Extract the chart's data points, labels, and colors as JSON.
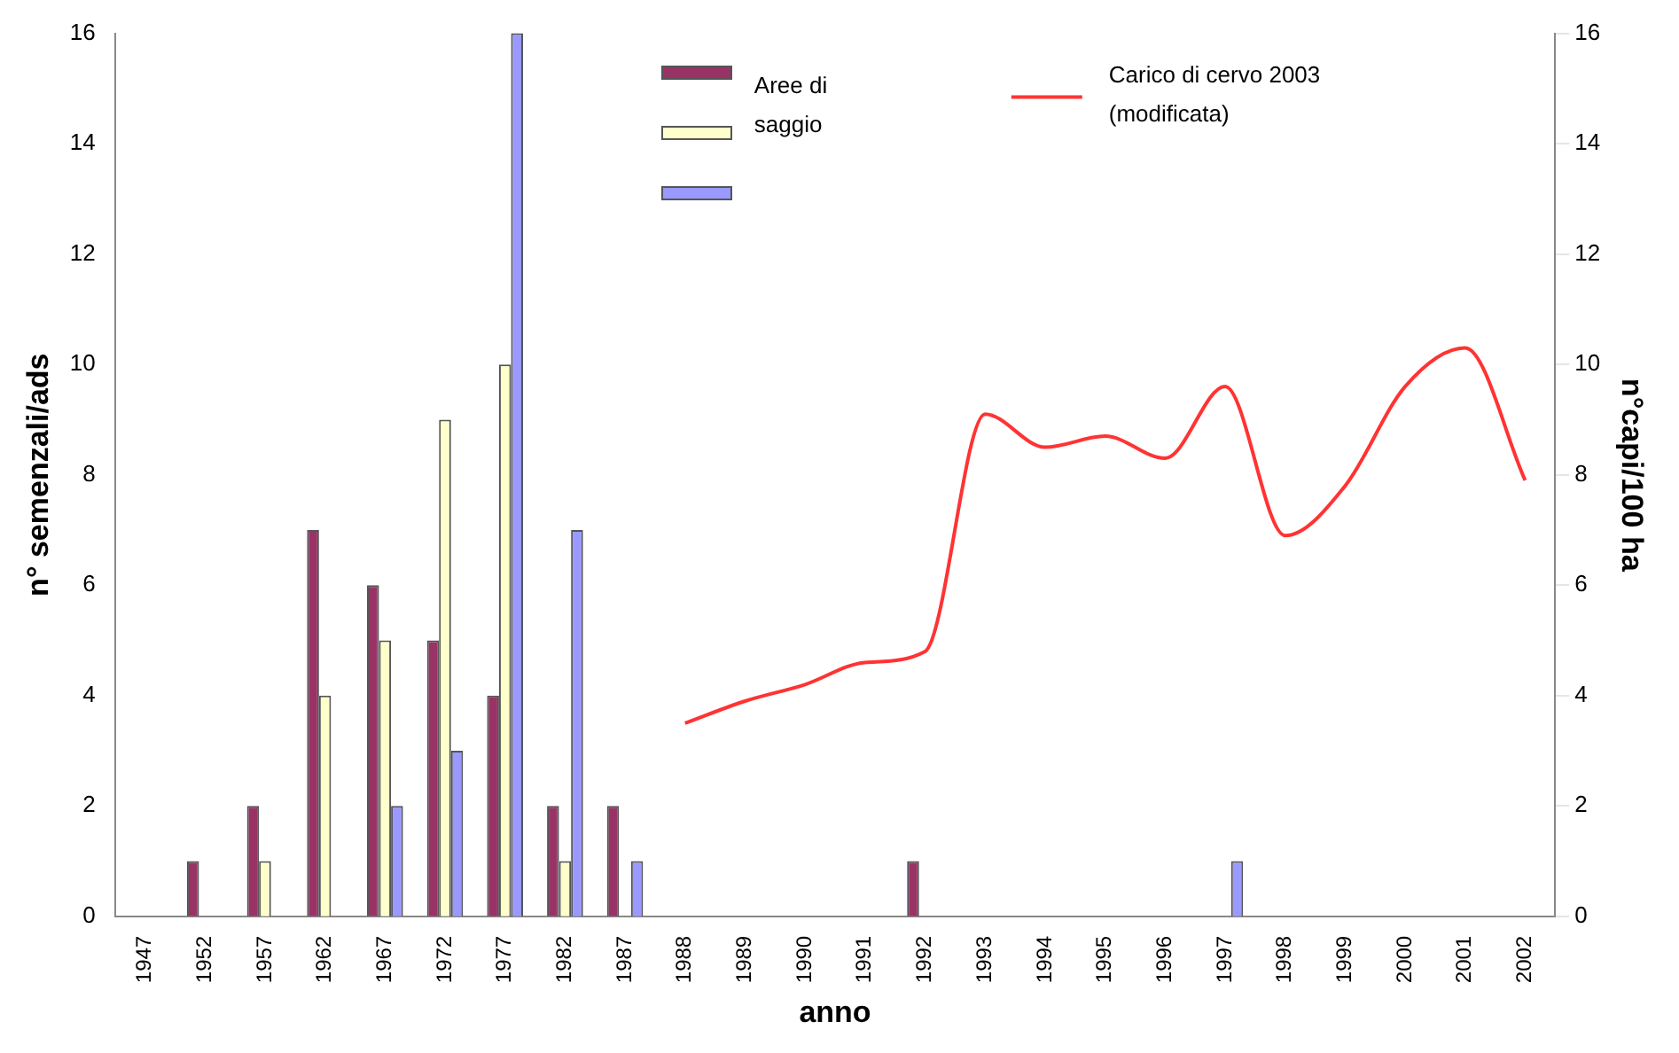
{
  "chart_data": {
    "type": "bar",
    "categories": [
      "1947",
      "1952",
      "1957",
      "1962",
      "1967",
      "1972",
      "1977",
      "1982",
      "1987",
      "1988",
      "1989",
      "1990",
      "1991",
      "1992",
      "1993",
      "1994",
      "1995",
      "1996",
      "1997",
      "1998",
      "1999",
      "2000",
      "2001",
      "2002"
    ],
    "xlabel": "anno",
    "ylabel": "n° semenzali/ads",
    "y2label": "n°capi/100 ha",
    "legend_title": "Aree di saggio",
    "series": [
      {
        "color": "#993366",
        "values": [
          0,
          1,
          2,
          7,
          6,
          5,
          4,
          2,
          2,
          0,
          0,
          0,
          0,
          1,
          0,
          0,
          0,
          0,
          0,
          0,
          0,
          0,
          0,
          0
        ]
      },
      {
        "color": "#ffffcc",
        "values": [
          0,
          0,
          1,
          4,
          5,
          9,
          10,
          1,
          0,
          0,
          0,
          0,
          0,
          0,
          0,
          0,
          0,
          0,
          0,
          0,
          0,
          0,
          0,
          0
        ]
      },
      {
        "color": "#9999ff",
        "values": [
          0,
          0,
          0,
          0,
          2,
          3,
          16,
          7,
          1,
          0,
          0,
          0,
          0,
          0,
          0,
          0,
          0,
          0,
          1,
          0,
          0,
          0,
          0,
          0
        ]
      },
      {
        "type": "line",
        "axis": "y2",
        "name": "Carico di cervo 2003 (modificata)",
        "color": "#ff3333",
        "values": [
          null,
          null,
          null,
          null,
          null,
          null,
          null,
          null,
          null,
          3.5,
          3.9,
          4.2,
          4.6,
          4.8,
          9.1,
          8.5,
          8.7,
          8.3,
          9.6,
          6.9,
          7.8,
          9.6,
          10.3,
          7.9
        ]
      }
    ],
    "ylim": [
      0,
      16
    ],
    "yticks": [
      0,
      2,
      4,
      6,
      8,
      10,
      12,
      14,
      16
    ],
    "y2lim": [
      0,
      16
    ],
    "y2ticks": [
      0,
      2,
      4,
      6,
      8,
      10,
      12,
      14,
      16
    ],
    "grid": false,
    "legend": "top",
    "marker": "none",
    "line_style": "solid"
  }
}
